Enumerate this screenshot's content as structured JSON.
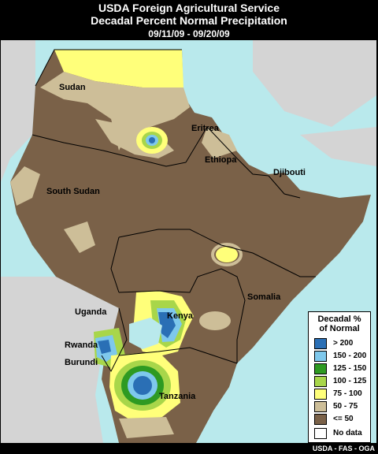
{
  "header": {
    "title_line1": "USDA Foreign Agricultural Service",
    "title_line2": "Decadal Percent Normal Precipitation",
    "date_range": "09/11/09 - 09/20/09"
  },
  "map": {
    "labels": [
      {
        "id": "sudan",
        "text": "Sudan"
      },
      {
        "id": "eritrea",
        "text": "Eritrea"
      },
      {
        "id": "ethiopia",
        "text": "Ethiopa"
      },
      {
        "id": "djibouti",
        "text": "Djibouti"
      },
      {
        "id": "south-sudan",
        "text": "South Sudan"
      },
      {
        "id": "somalia",
        "text": "Somalia"
      },
      {
        "id": "uganda",
        "text": "Uganda"
      },
      {
        "id": "kenya",
        "text": "Kenya"
      },
      {
        "id": "rwanda",
        "text": "Rwanda"
      },
      {
        "id": "burundi",
        "text": "Burundi"
      },
      {
        "id": "tanzania",
        "text": "Tanzania"
      }
    ],
    "colors": {
      "water": "#b9e9ec",
      "outside": "#d4d4d4",
      "le50": "#7a6148",
      "50_75": "#cdbe98",
      "75_100": "#ffff7a",
      "100_125": "#a8d64a",
      "125_150": "#2e9a22",
      "150_200": "#7ec8ec",
      "gt200": "#2a6fb5"
    }
  },
  "legend": {
    "title_line1": "Decadal %",
    "title_line2": "of Normal",
    "items": [
      {
        "label": "> 200",
        "color": "#2a6fb5"
      },
      {
        "label": "150 - 200",
        "color": "#7ec8ec"
      },
      {
        "label": "125 - 150",
        "color": "#2e9a22"
      },
      {
        "label": "100 - 125",
        "color": "#a8d64a"
      },
      {
        "label": "75 - 100",
        "color": "#ffff7a"
      },
      {
        "label": "50 -  75",
        "color": "#cdbe98"
      },
      {
        "label": "<= 50",
        "color": "#7a6148"
      },
      {
        "label": "No data",
        "color": "#ffffff"
      }
    ]
  },
  "footer": {
    "credit": "USDA - FAS - OGA"
  }
}
